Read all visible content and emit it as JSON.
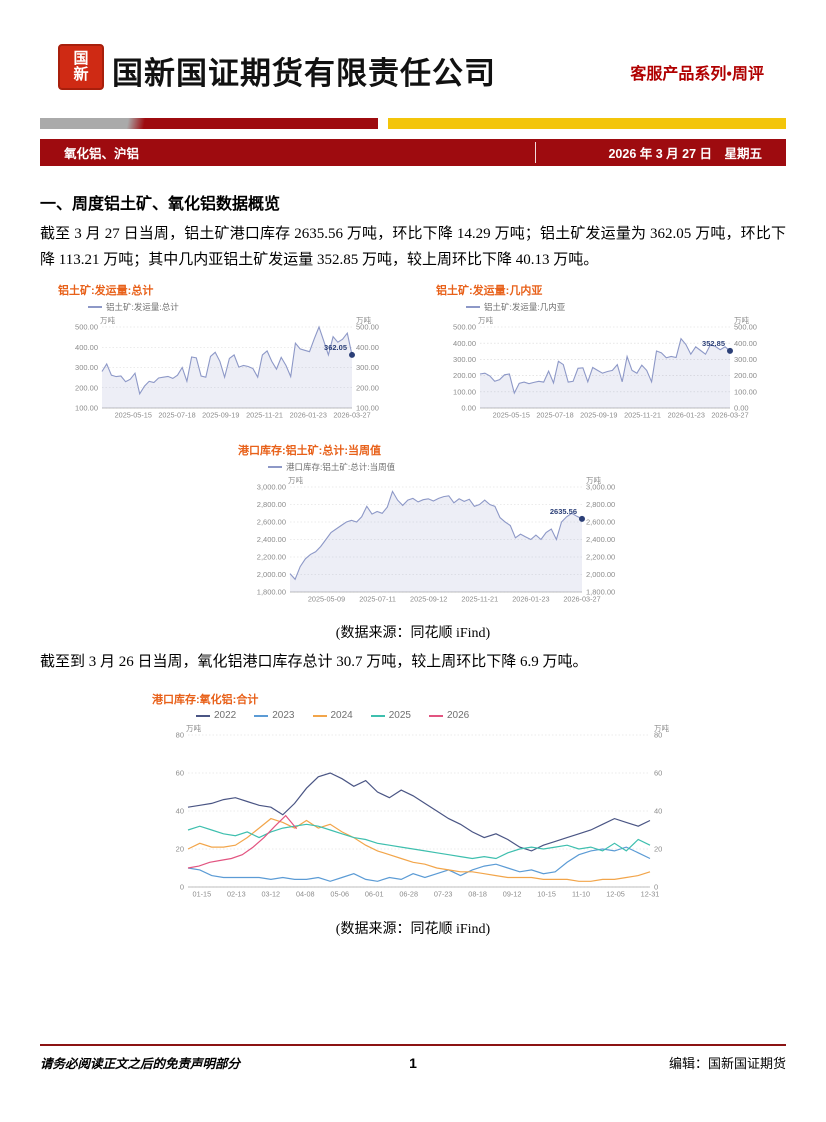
{
  "header": {
    "logo_text": "国新",
    "company_name": "国新国证期货有限责任公司",
    "series_label": "客服产品系列•周评"
  },
  "banner": {
    "left": "氧化铝、沪铝",
    "right": "2026 年 3 月 27 日　星期五"
  },
  "section": {
    "heading": "一、周度铝土矿、氧化铝数据概览",
    "paragraph1": "截至 3 月 27 日当周，铝土矿港口库存 2635.56 万吨，环比下降 14.29 万吨；铝土矿发运量为 362.05 万吨，环比下降 113.21 万吨；其中几内亚铝土矿发运量 352.85 万吨，较上周环比下降 40.13 万吨。",
    "caption1": "(数据来源：同花顺 iFind)",
    "paragraph2": "截至到 3 月 26 日当周，氧化铝港口库存总计 30.7 万吨，较上周环比下降 6.9 万吨。",
    "caption2": "(数据来源：同花顺 iFind)"
  },
  "footer": {
    "disclaimer": "请务必阅读正文之后的免责声明部分",
    "page_number": "1",
    "editor": "编辑：国新国证期货"
  },
  "colors": {
    "banner_red": "#9e0b0f",
    "bar_yellow": "#f3c50a",
    "title_red": "#b00000",
    "chart_title_orange": "#e8611a",
    "line_periwinkle": "#8d98c7",
    "marker_navy": "#2b3f77"
  },
  "chart_data": [
    {
      "type": "area",
      "title": "铝土矿:发运量:总计",
      "legend": "铝土矿:发运量:总计",
      "unit": "万吨",
      "line_color": "#8d98c7",
      "fill_color": "rgba(141,152,199,0.16)",
      "ylim": [
        100,
        500
      ],
      "yticks": [
        100,
        200,
        300,
        400,
        500
      ],
      "ytick_format": "2dp",
      "xticks": [
        "2025-05-15",
        "2025-07-18",
        "2025-09-19",
        "2025-11-21",
        "2026-01-23",
        "2026-03-27"
      ],
      "last_label": "362.05",
      "values": [
        280,
        318,
        262,
        255,
        258,
        230,
        242,
        272,
        170,
        208,
        232,
        226,
        248,
        252,
        256,
        246,
        262,
        300,
        232,
        352,
        348,
        258,
        252,
        355,
        375,
        330,
        252,
        345,
        362,
        302,
        310,
        305,
        295,
        252,
        362,
        382,
        330,
        292,
        350,
        310,
        255,
        420,
        392,
        385,
        378,
        442,
        500,
        432,
        362,
        452,
        425,
        440,
        470,
        362.05
      ]
    },
    {
      "type": "area",
      "title": "铝土矿:发运量:几内亚",
      "legend": "铝土矿:发运量:几内亚",
      "unit": "万吨",
      "line_color": "#8d98c7",
      "fill_color": "rgba(141,152,199,0.16)",
      "ylim": [
        0,
        500
      ],
      "yticks": [
        0,
        100,
        200,
        300,
        400,
        500
      ],
      "ytick_format": "2dp",
      "xticks": [
        "2025-05-15",
        "2025-07-18",
        "2025-09-19",
        "2025-11-21",
        "2026-01-23",
        "2026-03-27"
      ],
      "last_label": "352.85",
      "values": [
        210,
        215,
        198,
        165,
        175,
        205,
        210,
        92,
        152,
        160,
        150,
        158,
        165,
        160,
        228,
        155,
        288,
        268,
        160,
        165,
        245,
        248,
        162,
        250,
        232,
        215,
        225,
        232,
        268,
        162,
        318,
        232,
        215,
        265,
        232,
        162,
        352,
        340,
        310,
        318,
        312,
        428,
        392,
        332,
        378,
        355,
        332,
        390,
        380,
        360,
        378,
        352.85
      ]
    },
    {
      "type": "area",
      "title": "港口库存:铝土矿:总计:当周值",
      "legend": "港口库存:铝土矿:总计:当周值",
      "unit": "万吨",
      "line_color": "#8d98c7",
      "fill_color": "rgba(141,152,199,0.16)",
      "ylim": [
        1800,
        3000
      ],
      "yticks": [
        1800,
        2000,
        2200,
        2400,
        2600,
        2800,
        3000
      ],
      "ytick_format": "2dp",
      "xticks": [
        "2025-05-09",
        "2025-07-11",
        "2025-09-12",
        "2025-11-21",
        "2026-01-23",
        "2026-03-27"
      ],
      "last_label": "2635.56",
      "values": [
        2010,
        1945,
        2090,
        2180,
        2230,
        2260,
        2320,
        2400,
        2480,
        2520,
        2560,
        2600,
        2620,
        2600,
        2660,
        2780,
        2690,
        2720,
        2700,
        2770,
        2950,
        2850,
        2790,
        2850,
        2870,
        2830,
        2855,
        2865,
        2840,
        2870,
        2890,
        2900,
        2820,
        2865,
        2835,
        2860,
        2780,
        2800,
        2850,
        2800,
        2780,
        2650,
        2600,
        2560,
        2420,
        2460,
        2430,
        2400,
        2450,
        2400,
        2480,
        2520,
        2400,
        2600,
        2660,
        2700,
        2665,
        2635.56
      ]
    },
    {
      "type": "line",
      "title": "港口库存:氧化铝:合计",
      "unit": "万吨",
      "ylim": [
        0,
        80
      ],
      "yticks": [
        0,
        20,
        40,
        60,
        80
      ],
      "ytick_format": "int",
      "xticks": [
        "01-15",
        "02-13",
        "03-12",
        "04-08",
        "05-06",
        "06-01",
        "06-28",
        "07-23",
        "08-18",
        "09-12",
        "10-15",
        "11-10",
        "12-05",
        "12-31"
      ],
      "series": [
        {
          "name": "2022",
          "color": "#4a5584",
          "span": 1,
          "values": [
            42,
            43,
            44,
            46,
            47,
            45,
            43,
            42,
            38,
            44,
            52,
            58,
            60,
            57,
            53,
            56,
            50,
            47,
            51,
            48,
            44,
            40,
            36,
            33,
            29,
            26,
            28,
            25,
            21,
            19,
            22,
            24,
            26,
            28,
            30,
            33,
            36,
            34,
            32,
            35
          ]
        },
        {
          "name": "2023",
          "color": "#5b9bd5",
          "span": 1,
          "values": [
            10,
            9,
            6,
            5,
            5,
            5,
            5,
            4,
            5,
            4,
            4,
            5,
            3,
            5,
            7,
            4,
            3,
            5,
            4,
            7,
            5,
            7,
            9,
            6,
            9,
            11,
            12,
            10,
            8,
            9,
            7,
            8,
            13,
            17,
            19,
            20,
            19,
            21,
            18,
            15
          ]
        },
        {
          "name": "2024",
          "color": "#f2a54a",
          "span": 1,
          "values": [
            20,
            23,
            21,
            21,
            22,
            26,
            31,
            36,
            34,
            31,
            35,
            31,
            33,
            29,
            26,
            22,
            19,
            17,
            15,
            13,
            12,
            10,
            9,
            8,
            8,
            7,
            6,
            5,
            5,
            5,
            4,
            4,
            4,
            3,
            3,
            4,
            4,
            5,
            6,
            8
          ]
        },
        {
          "name": "2025",
          "color": "#3ebfae",
          "span": 1,
          "values": [
            30,
            32,
            30,
            28,
            27,
            29,
            26,
            29,
            31,
            32,
            33,
            32,
            30,
            28,
            26,
            25,
            23,
            22,
            21,
            20,
            19,
            18,
            17,
            16,
            15,
            16,
            15,
            18,
            20,
            21,
            20,
            21,
            22,
            20,
            21,
            19,
            23,
            19,
            25,
            22
          ]
        },
        {
          "name": "2026",
          "color": "#e25480",
          "span": 0.235,
          "values": [
            10,
            11,
            13,
            14,
            15,
            17,
            21,
            26,
            32,
            37.6,
            30.7
          ]
        }
      ]
    }
  ]
}
